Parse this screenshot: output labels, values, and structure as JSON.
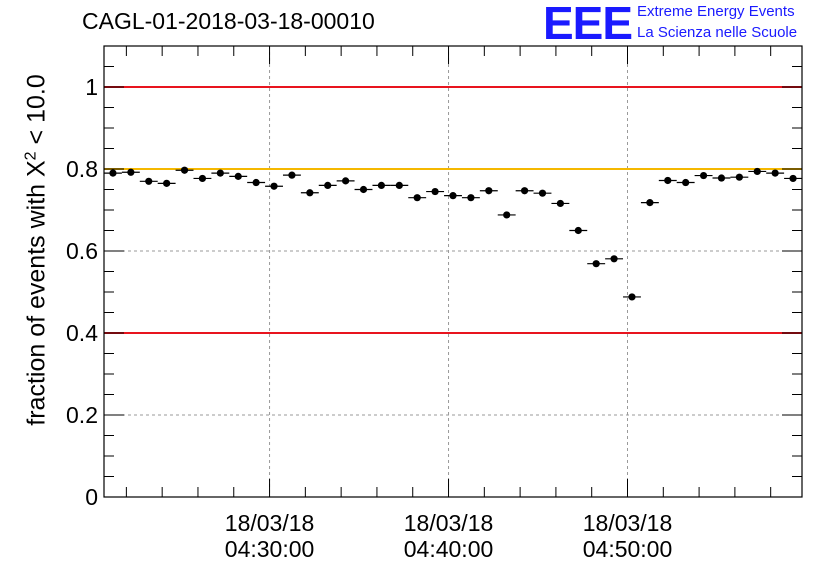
{
  "header": {
    "title": "CAGL-01-2018-03-18-00010",
    "logo_text": "EEE",
    "org_line1": "Extreme Energy Events",
    "org_line2": "La Scienza nelle Scuole"
  },
  "chart_data": {
    "type": "scatter",
    "title": "CAGL-01-2018-03-18-00010",
    "ylabel_prefix": "fraction of events with X",
    "ylabel_sup": "2",
    "ylabel_suffix": " < 10.0",
    "xlabel": "",
    "ylim": [
      0,
      1.1
    ],
    "y_ticks": [
      "0",
      "0.2",
      "0.4",
      "0.6",
      "0.8",
      "1"
    ],
    "y_tick_values": [
      0,
      0.2,
      0.4,
      0.6,
      0.8,
      1.0
    ],
    "x_ticks": [
      {
        "date": "18/03/18",
        "time": "04:30:00",
        "minute": 30
      },
      {
        "date": "18/03/18",
        "time": "04:40:00",
        "minute": 40
      },
      {
        "date": "18/03/18",
        "time": "04:50:00",
        "minute": 50
      }
    ],
    "x_range_minutes": [
      20.75,
      59.75
    ],
    "x_start_time": "04:20:45",
    "bin_width_minutes": 1,
    "grid": true,
    "reference_lines": [
      {
        "y": 1.0,
        "color": "#e8141e"
      },
      {
        "y": 0.8,
        "color": "#f5b800"
      },
      {
        "y": 0.4,
        "color": "#e8141e"
      }
    ],
    "points": {
      "x_minutes": [
        21.25,
        22.25,
        23.25,
        24.25,
        25.25,
        26.25,
        27.25,
        28.25,
        29.25,
        30.25,
        31.25,
        32.25,
        33.25,
        34.25,
        35.25,
        36.25,
        37.25,
        38.25,
        39.25,
        40.25,
        41.25,
        42.25,
        43.25,
        44.25,
        45.25,
        46.25,
        47.25,
        48.25,
        49.25,
        50.25,
        51.25,
        52.25,
        53.25,
        54.25,
        55.25,
        56.25,
        57.25,
        58.25,
        59.25
      ],
      "y": [
        0.79,
        0.792,
        0.77,
        0.765,
        0.797,
        0.777,
        0.79,
        0.782,
        0.767,
        0.758,
        0.785,
        0.742,
        0.76,
        0.771,
        0.75,
        0.76,
        0.76,
        0.73,
        0.745,
        0.735,
        0.73,
        0.747,
        0.688,
        0.747,
        0.741,
        0.716,
        0.65,
        0.569,
        0.581,
        0.488,
        0.718,
        0.772,
        0.767,
        0.784,
        0.778,
        0.78,
        0.794,
        0.79,
        0.777
      ],
      "y_err": 0.007,
      "color": "#000000"
    }
  }
}
